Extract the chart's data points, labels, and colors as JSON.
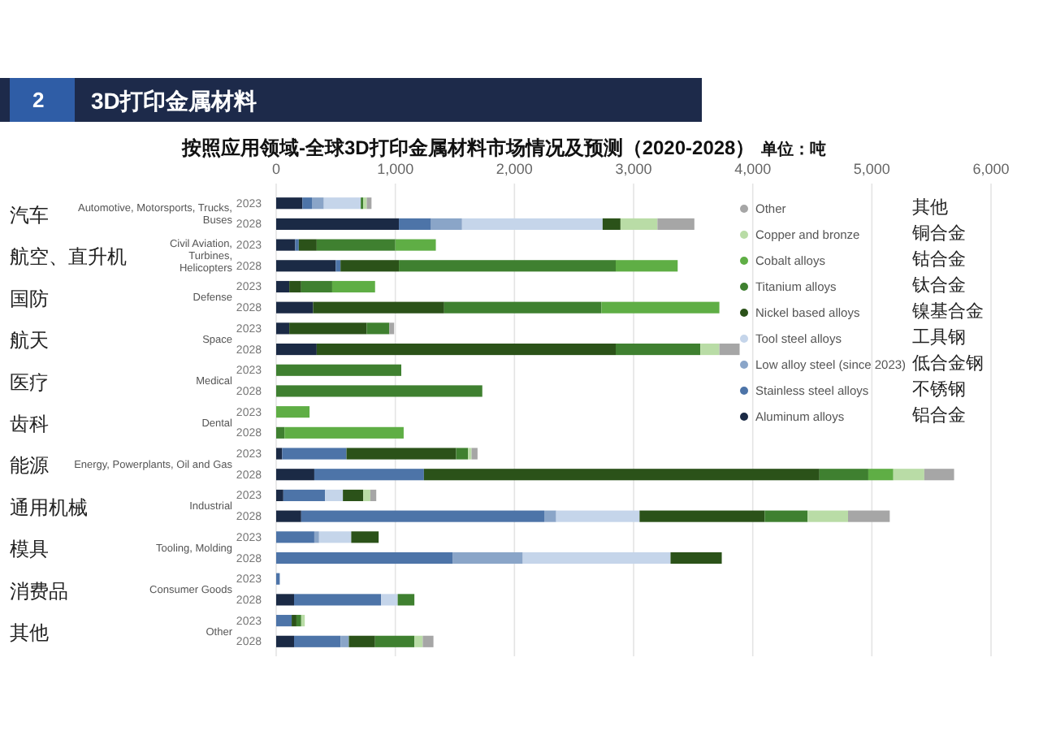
{
  "chart_data": {
    "type": "bar",
    "orientation": "horizontal",
    "stacked": true,
    "title": "按照应用领域-全球3D打印金属材料市场情况及预测（2020-2028）",
    "subtitle": "单位：吨",
    "categories": [
      "2023",
      "2028",
      "2023",
      "2028",
      "2023",
      "2028",
      "2023",
      "2028",
      "2023",
      "2028",
      "2023",
      "2028",
      "2023",
      "2028",
      "2023",
      "2028",
      "2023",
      "2028",
      "2023",
      "2028",
      "2023",
      "2028"
    ],
    "xlim": [
      0,
      6000
    ],
    "xticks": [
      0,
      {
        "value": 1000,
        "label": "1,000"
      },
      {
        "value": 2000,
        "label": "2,000"
      },
      {
        "value": 3000,
        "label": "3,000"
      },
      {
        "value": 4000,
        "label": "4,000"
      },
      {
        "value": 5000,
        "label": "5,000"
      },
      {
        "value": 6000,
        "label": "6,000"
      }
    ],
    "grid": "x",
    "legend": "top right",
    "series": [
      {
        "name": "Aluminum alloys 铝合金",
        "color": "#1b2a45",
        "values": [
          220,
          1030,
          160,
          500,
          110,
          310,
          110,
          340,
          null,
          null,
          null,
          null,
          50,
          320,
          60,
          210,
          null,
          null,
          null,
          150,
          null,
          150
        ]
      },
      {
        "name": "Stainless steel alloys 不锈钢",
        "color": "#4d74a8",
        "values": [
          80,
          270,
          30,
          40,
          null,
          null,
          null,
          null,
          null,
          null,
          null,
          null,
          540,
          920,
          350,
          2040,
          320,
          1480,
          30,
          730,
          130,
          390
        ]
      },
      {
        "name": "Low alloy steel (since 2023) 低合金钢",
        "color": "#8aa5c8",
        "values": [
          100,
          260,
          null,
          null,
          null,
          null,
          null,
          null,
          null,
          null,
          null,
          null,
          null,
          null,
          null,
          100,
          40,
          590,
          null,
          null,
          null,
          70
        ]
      },
      {
        "name": "Tool steel alloys 工具钢",
        "color": "#c5d5ea",
        "values": [
          310,
          1180,
          null,
          null,
          null,
          null,
          null,
          null,
          null,
          null,
          null,
          null,
          null,
          null,
          150,
          700,
          270,
          1240,
          null,
          140,
          null,
          null
        ]
      },
      {
        "name": "Nickel based alloys 镍基合金",
        "color": "#2b5219",
        "values": [
          null,
          150,
          150,
          490,
          100,
          1100,
          650,
          2510,
          null,
          null,
          null,
          null,
          920,
          3320,
          170,
          1050,
          230,
          430,
          null,
          null,
          40,
          220
        ]
      },
      {
        "name": "Titanium alloys 钛合金",
        "color": "#3f8030",
        "values": [
          20,
          null,
          660,
          1820,
          260,
          1320,
          190,
          710,
          1050,
          1730,
          null,
          70,
          100,
          410,
          null,
          360,
          null,
          null,
          null,
          140,
          40,
          330
        ]
      },
      {
        "name": "Cobalt alloys 钴合金",
        "color": "#5fae45",
        "values": [
          null,
          null,
          340,
          520,
          360,
          990,
          null,
          null,
          null,
          null,
          280,
          1000,
          null,
          210,
          null,
          null,
          null,
          null,
          null,
          null,
          null,
          null
        ]
      },
      {
        "name": "Copper and bronze 铜合金",
        "color": "#b9dca6",
        "values": [
          30,
          310,
          null,
          null,
          null,
          null,
          null,
          160,
          null,
          null,
          null,
          null,
          30,
          260,
          60,
          340,
          null,
          null,
          null,
          null,
          30,
          70
        ]
      },
      {
        "name": "Other 其他",
        "color": "#a6a6a6",
        "values": [
          40,
          310,
          null,
          null,
          null,
          null,
          40,
          170,
          null,
          null,
          null,
          null,
          50,
          250,
          50,
          350,
          null,
          null,
          null,
          null,
          null,
          90
        ]
      }
    ],
    "annotations": [
      "2",
      "3D打印金属材料",
      "Automotive, Motorsports, Trucks, Buses",
      "汽车",
      "Civil Aviation, Turbines, Helicopters",
      "航空、直升机",
      "Defense",
      "国防",
      "Space",
      "航天",
      "Medical",
      "医疗",
      "Dental",
      "齿科",
      "Energy, Powerplants, Oil and Gas",
      "能源",
      "Industrial",
      "通用机械",
      "Tooling, Molding",
      "模具",
      "Consumer Goods",
      "消费品",
      "Other",
      "其他"
    ]
  }
}
